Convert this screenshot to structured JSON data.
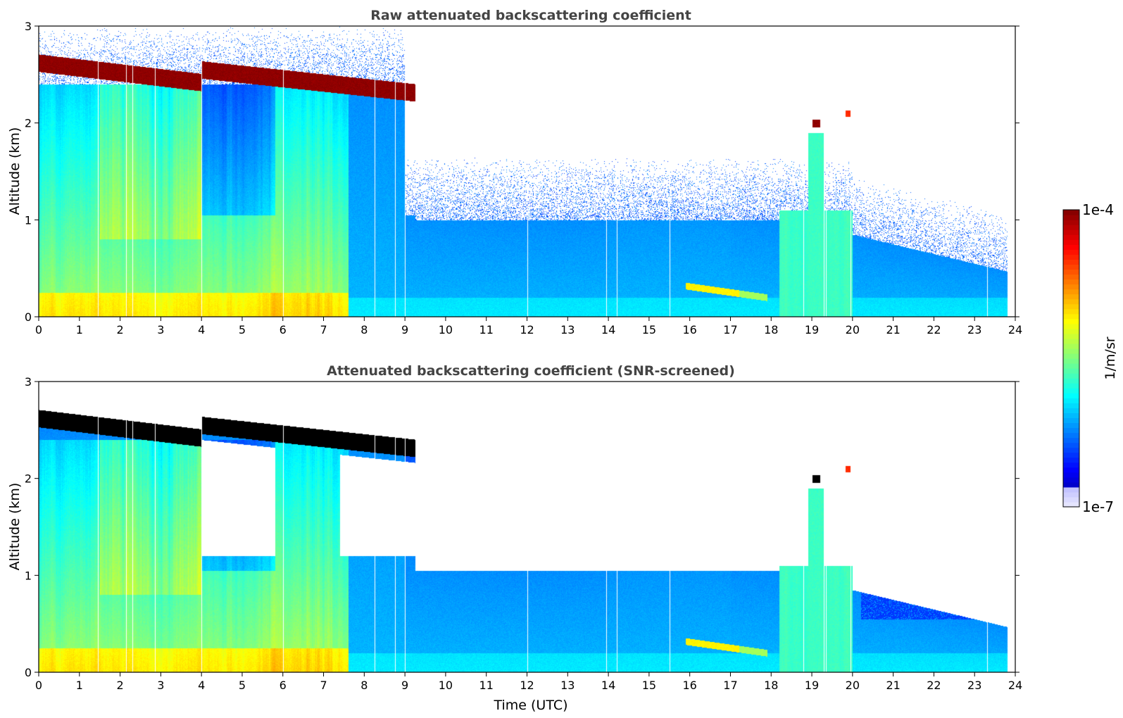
{
  "chart_data": [
    {
      "type": "heatmap",
      "title": "Raw attenuated backscattering coefficient",
      "xlabel": "",
      "ylabel": "Altitude (km)",
      "xlim": [
        0,
        24
      ],
      "ylim": [
        0,
        3
      ],
      "x_ticks": [
        "0",
        "1",
        "2",
        "3",
        "4",
        "5",
        "6",
        "7",
        "8",
        "9",
        "10",
        "11",
        "12",
        "13",
        "14",
        "15",
        "16",
        "17",
        "18",
        "19",
        "20",
        "21",
        "22",
        "23",
        "24"
      ],
      "y_ticks": [
        "0",
        "1",
        "2",
        "3"
      ],
      "screened": false,
      "features": [
        {
          "name": "cloud base layer",
          "x": [
            0,
            9.2
          ],
          "y_start": 2.62,
          "y_end": 2.3,
          "level": "max"
        },
        {
          "name": "small cloud",
          "x": [
            19.0,
            19.2
          ],
          "y": 2.0,
          "level": "max"
        },
        {
          "name": "small cloud",
          "x": [
            19.8,
            19.95
          ],
          "y": 2.1,
          "level": "high"
        },
        {
          "name": "aerosol plume",
          "x": [
            16.0,
            17.2
          ],
          "y": [
            0.22,
            0.32
          ],
          "level": "medium"
        }
      ],
      "gaps_utc": [
        1.45,
        2.15,
        2.3,
        2.85,
        4.0,
        6.0,
        8.25,
        8.75,
        9.0,
        12.0,
        13.95,
        14.2,
        15.5,
        18.8,
        19.3,
        19.35,
        19.95,
        23.3
      ]
    },
    {
      "type": "heatmap",
      "title": "Attenuated backscattering coefficient (SNR-screened)",
      "xlabel": "Time (UTC)",
      "ylabel": "Altitude (km)",
      "xlim": [
        0,
        24
      ],
      "ylim": [
        0,
        3
      ],
      "x_ticks": [
        "0",
        "1",
        "2",
        "3",
        "4",
        "5",
        "6",
        "7",
        "8",
        "9",
        "10",
        "11",
        "12",
        "13",
        "14",
        "15",
        "16",
        "17",
        "18",
        "19",
        "20",
        "21",
        "22",
        "23",
        "24"
      ],
      "y_ticks": [
        "0",
        "1",
        "2",
        "3"
      ],
      "screened": true,
      "saturated_color": "#000000",
      "gaps_utc": [
        1.45,
        2.15,
        2.3,
        2.85,
        4.0,
        6.0,
        8.25,
        8.75,
        9.0,
        12.0,
        13.95,
        14.2,
        15.5,
        18.8,
        19.3,
        19.35,
        19.95,
        23.3
      ]
    }
  ],
  "colorbar": {
    "label": "1/m/sr",
    "min_label": "1e-7",
    "max_label": "1e-4",
    "scale": "log",
    "colormap": "jet",
    "range": [
      1e-07,
      0.0001
    ]
  }
}
